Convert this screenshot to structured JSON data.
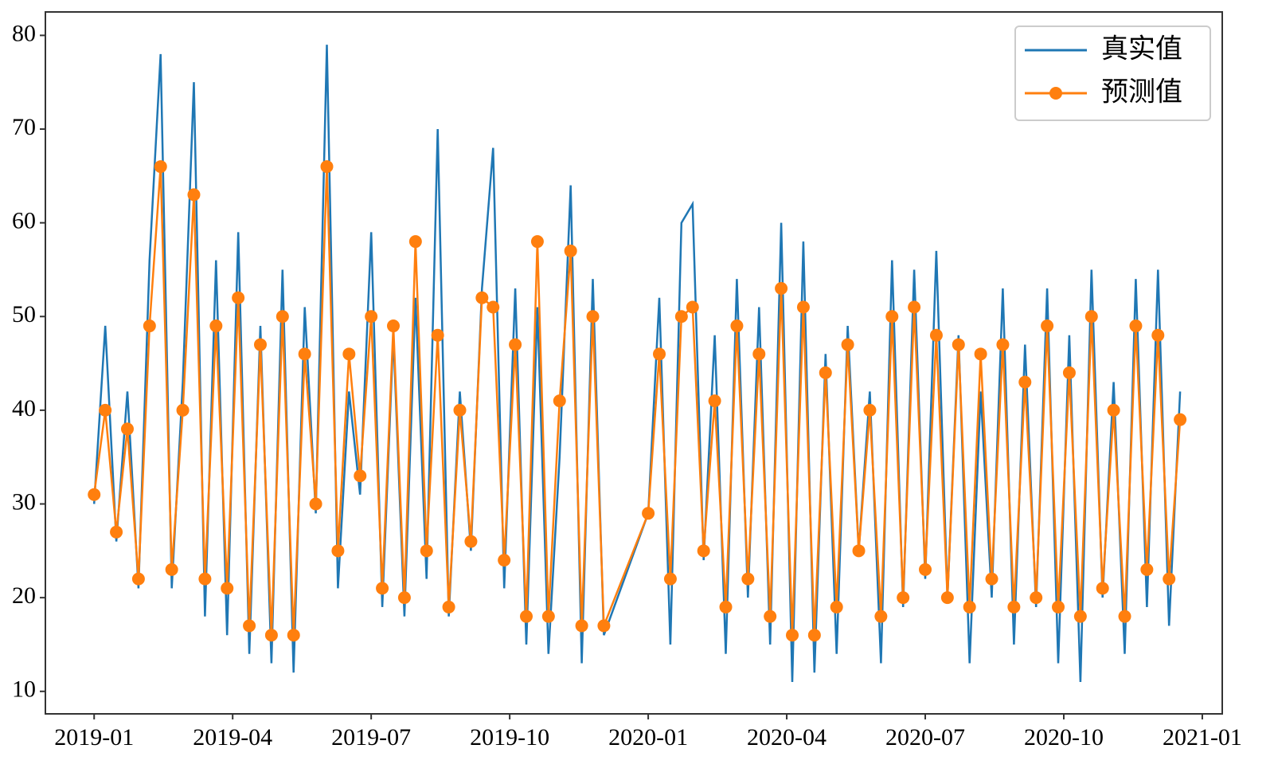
{
  "chart_data": {
    "type": "line",
    "x": [
      2019.0,
      2019.02,
      2019.04,
      2019.06,
      2019.08,
      2019.1,
      2019.12,
      2019.14,
      2019.16,
      2019.18,
      2019.2,
      2019.22,
      2019.24,
      2019.26,
      2019.28,
      2019.3,
      2019.32,
      2019.34,
      2019.36,
      2019.38,
      2019.4,
      2019.42,
      2019.44,
      2019.46,
      2019.48,
      2019.5,
      2019.52,
      2019.54,
      2019.56,
      2019.58,
      2019.6,
      2019.62,
      2019.64,
      2019.66,
      2019.68,
      2019.7,
      2019.72,
      2019.74,
      2019.76,
      2019.78,
      2019.8,
      2019.82,
      2019.84,
      2019.86,
      2019.88,
      2019.9,
      2019.92,
      2020.0,
      2020.02,
      2020.04,
      2020.06,
      2020.08,
      2020.1,
      2020.12,
      2020.14,
      2020.16,
      2020.18,
      2020.2,
      2020.22,
      2020.24,
      2020.26,
      2020.28,
      2020.3,
      2020.32,
      2020.34,
      2020.36,
      2020.38,
      2020.4,
      2020.42,
      2020.44,
      2020.46,
      2020.48,
      2020.5,
      2020.52,
      2020.54,
      2020.56,
      2020.58,
      2020.6,
      2020.62,
      2020.64,
      2020.66,
      2020.68,
      2020.7,
      2020.72,
      2020.74,
      2020.76,
      2020.78,
      2020.8,
      2020.82,
      2020.84,
      2020.86,
      2020.88,
      2020.9,
      2020.92,
      2020.94,
      2020.96
    ],
    "series": [
      {
        "name": "真实值",
        "color": "#1f77b4",
        "marker": false,
        "values": [
          30,
          49,
          26,
          42,
          21,
          56,
          78,
          21,
          43,
          75,
          18,
          56,
          16,
          59,
          14,
          49,
          13,
          55,
          12,
          51,
          29,
          79,
          21,
          42,
          31,
          59,
          19,
          48,
          18,
          52,
          22,
          70,
          18,
          42,
          25,
          53,
          68,
          21,
          53,
          15,
          51,
          14,
          35,
          64,
          13,
          54,
          16,
          29,
          52,
          15,
          60,
          62,
          24,
          48,
          14,
          54,
          20,
          51,
          15,
          60,
          11,
          58,
          12,
          46,
          14,
          49,
          25,
          42,
          13,
          56,
          19,
          55,
          22,
          57,
          20,
          48,
          13,
          42,
          20,
          53,
          15,
          47,
          19,
          53,
          13,
          48,
          11,
          55,
          20,
          43,
          14,
          54,
          19,
          55,
          17,
          42
        ]
      },
      {
        "name": "预测值",
        "color": "#ff7f0e",
        "marker": true,
        "values": [
          31,
          40,
          27,
          38,
          22,
          49,
          66,
          23,
          40,
          63,
          22,
          49,
          21,
          52,
          17,
          47,
          16,
          50,
          16,
          46,
          30,
          66,
          25,
          46,
          33,
          50,
          21,
          49,
          20,
          58,
          25,
          48,
          19,
          40,
          26,
          52,
          51,
          24,
          47,
          18,
          58,
          18,
          41,
          57,
          17,
          50,
          17,
          29,
          46,
          22,
          50,
          51,
          25,
          41,
          19,
          49,
          22,
          46,
          18,
          53,
          16,
          51,
          16,
          44,
          19,
          47,
          25,
          40,
          18,
          50,
          20,
          51,
          23,
          48,
          20,
          47,
          19,
          46,
          22,
          47,
          19,
          43,
          20,
          49,
          19,
          44,
          18,
          50,
          21,
          40,
          18,
          49,
          23,
          48,
          22,
          39
        ]
      }
    ],
    "xlim": [
      2018.912,
      2021.036
    ],
    "xticks": [
      {
        "value": 2019.0,
        "label": "2019-01"
      },
      {
        "value": 2019.25,
        "label": "2019-04"
      },
      {
        "value": 2019.5,
        "label": "2019-07"
      },
      {
        "value": 2019.75,
        "label": "2019-10"
      },
      {
        "value": 2020.0,
        "label": "2020-01"
      },
      {
        "value": 2020.25,
        "label": "2020-04"
      },
      {
        "value": 2020.5,
        "label": "2020-07"
      },
      {
        "value": 2020.75,
        "label": "2020-10"
      },
      {
        "value": 2021.0,
        "label": "2021-01"
      }
    ],
    "ylim": [
      7.6,
      82.5
    ],
    "yticks": [
      10,
      20,
      30,
      40,
      50,
      60,
      70,
      80
    ],
    "legend": "upper right",
    "grid": false
  }
}
